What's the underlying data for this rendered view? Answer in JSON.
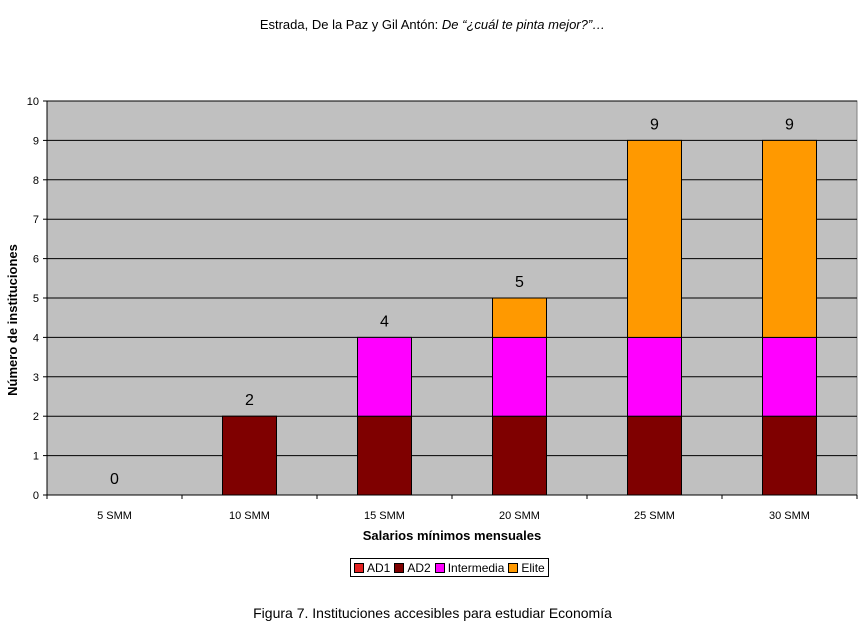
{
  "header": {
    "authors": "Estrada, De la Paz y Gil Antón: ",
    "article": "De “¿cuál te pinta mejor?”…"
  },
  "caption": "Figura 7. Instituciones accesibles para estudiar Economía",
  "chart_data": {
    "type": "bar",
    "stacked": true,
    "categories": [
      "5 SMM",
      "10 SMM",
      "15 SMM",
      "20 SMM",
      "25 SMM",
      "30 SMM"
    ],
    "series": [
      {
        "name": "AD1",
        "color": "#e32222",
        "values": [
          0,
          0,
          0,
          0,
          0,
          0
        ]
      },
      {
        "name": "AD2",
        "color": "#7f0000",
        "values": [
          0,
          2,
          2,
          2,
          2,
          2
        ]
      },
      {
        "name": "Intermedia",
        "color": "#ff00ff",
        "values": [
          0,
          0,
          2,
          2,
          2,
          2
        ]
      },
      {
        "name": "Elite",
        "color": "#ff9900",
        "values": [
          0,
          0,
          0,
          1,
          5,
          5
        ]
      }
    ],
    "totals": [
      0,
      2,
      4,
      5,
      9,
      9
    ],
    "xlabel": "Salarios mínimos mensuales",
    "ylabel": "Número de instituciones",
    "ylim": [
      0,
      10
    ],
    "yticks": [
      0,
      1,
      2,
      3,
      4,
      5,
      6,
      7,
      8,
      9,
      10
    ],
    "grid": true,
    "plot_background": "#c0c0c0",
    "legend_position": "bottom"
  }
}
